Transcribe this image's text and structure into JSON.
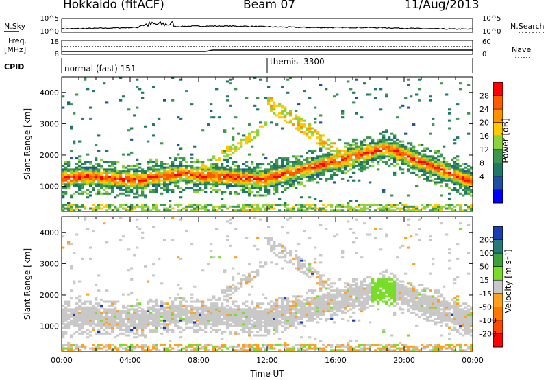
{
  "header": {
    "station": "Hokkaido (fitACF)",
    "beam": "Beam 07",
    "date": "11/Aug/2013"
  },
  "strip_panels": {
    "nsky_label": "N.Sky",
    "nsky_ticks": [
      "10^5",
      "10^0"
    ],
    "nsearch_ticks": [
      "10^5",
      "10^0"
    ],
    "nsearch_label": "N.Search",
    "freq_label": "Freq.",
    "freq_unit": "[MHz]",
    "freq_ticks": [
      "18",
      "8"
    ],
    "nave_ticks": [
      "60",
      "0"
    ],
    "nave_label": "Nave",
    "cpid_label": "CPID",
    "cpid_segments": [
      {
        "name": "normal (fast) 151",
        "start_hour": 0
      },
      {
        "name": "themis -3300",
        "start_hour": 12
      }
    ]
  },
  "chart_data": [
    {
      "type": "heatmap",
      "name": "power",
      "x_range_hours": [
        0,
        24
      ],
      "ylabel": "Slant Range [km]",
      "ylim": [
        200,
        4500
      ],
      "yticks": [
        "1000",
        "2000",
        "3000",
        "4000"
      ],
      "colorbar_label": "Power [dB]",
      "colorbar_ticks": [
        "28",
        "24",
        "20",
        "16",
        "12",
        "8",
        "4"
      ],
      "colorbar_colors": [
        "#ff0000",
        "#ff5a00",
        "#ff9000",
        "#ffc800",
        "#8cd23c",
        "#3c9650",
        "#1e7864",
        "#1e50a0",
        "#0000ff"
      ]
    },
    {
      "type": "heatmap",
      "name": "velocity",
      "x_range_hours": [
        0,
        24
      ],
      "ylabel": "Slant Range [km]",
      "ylim": [
        200,
        4500
      ],
      "yticks": [
        "1000",
        "2000",
        "3000",
        "4000"
      ],
      "xticks": [
        "00:00",
        "04:00",
        "08:00",
        "12:00",
        "16:00",
        "20:00",
        "00:00"
      ],
      "xlabel": "Time UT",
      "colorbar_label": "Velocity [m s⁻¹]",
      "colorbar_ticks": [
        "200",
        "100",
        "50",
        "15",
        "-15",
        "-50",
        "-100",
        "-200"
      ],
      "colorbar_colors": [
        "#1c3cb4",
        "#287878",
        "#3ca03c",
        "#78dc28",
        "#c8c8c8",
        "#ffa01e",
        "#ff7800",
        "#ff4600",
        "#ff0000"
      ]
    }
  ]
}
